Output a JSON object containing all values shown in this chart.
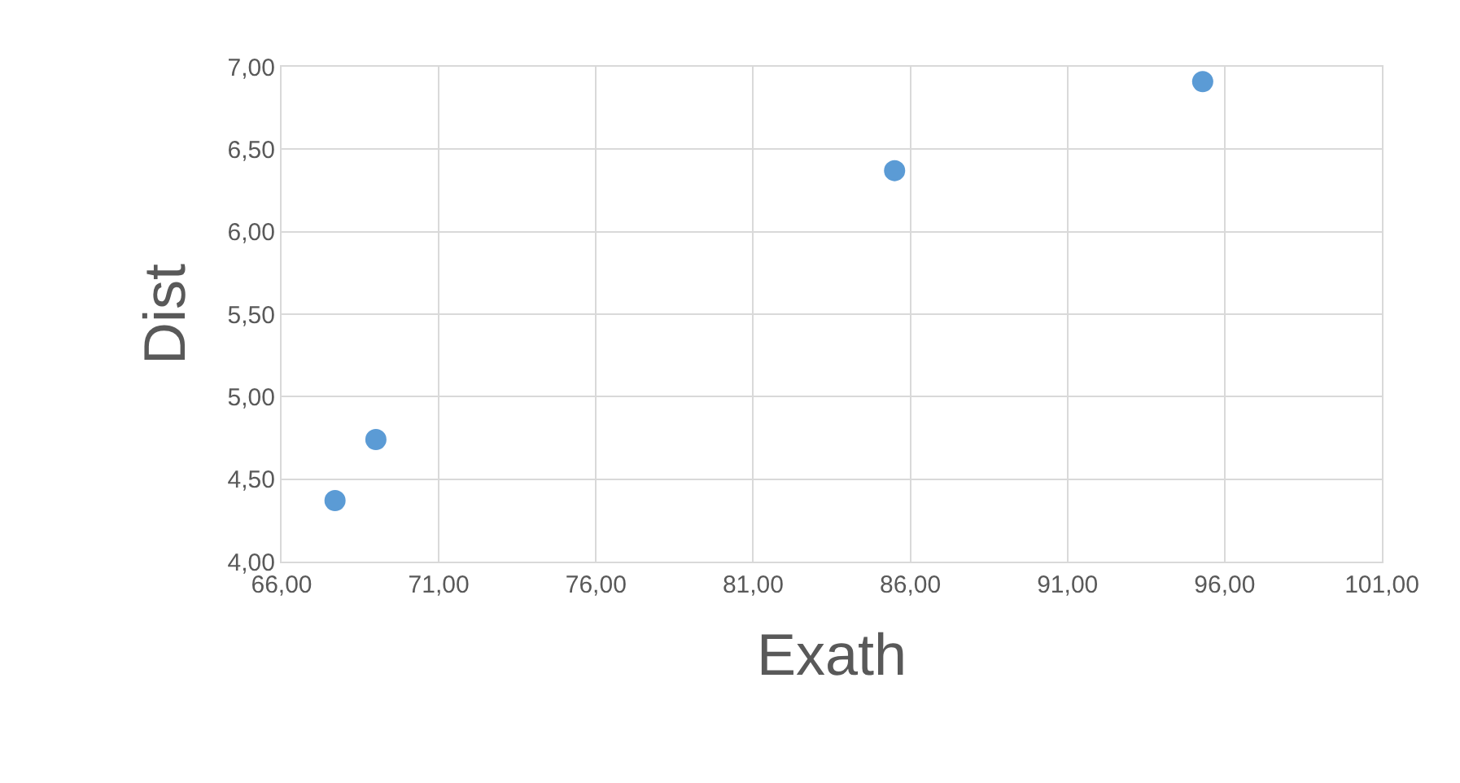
{
  "chart_data": {
    "type": "scatter",
    "xlabel": "Exath",
    "ylabel": "Dist",
    "x": [
      67.7,
      69.0,
      85.5,
      95.3
    ],
    "series": [
      {
        "color": "#5b9bd5",
        "values": [
          4.37,
          4.74,
          6.37,
          6.91
        ]
      }
    ],
    "xlim": [
      66,
      101
    ],
    "xticks": [
      {
        "value": 66,
        "label": "66,00"
      },
      {
        "value": 71,
        "label": "71,00"
      },
      {
        "value": 76,
        "label": "76,00"
      },
      {
        "value": 81,
        "label": "81,00"
      },
      {
        "value": 86,
        "label": "86,00"
      },
      {
        "value": 91,
        "label": "91,00"
      },
      {
        "value": 96,
        "label": "96,00"
      },
      {
        "value": 101,
        "label": "101,00"
      }
    ],
    "ylim": [
      4,
      7
    ],
    "yticks": [
      {
        "value": 4,
        "label": "4,00"
      },
      {
        "value": 4.5,
        "label": "4,50"
      },
      {
        "value": 5,
        "label": "5,00"
      },
      {
        "value": 5.5,
        "label": "5,50"
      },
      {
        "value": 6,
        "label": "6,00"
      },
      {
        "value": 6.5,
        "label": "6,50"
      },
      {
        "value": 7,
        "label": "7,00"
      }
    ],
    "grid": true,
    "marker": "circle"
  }
}
